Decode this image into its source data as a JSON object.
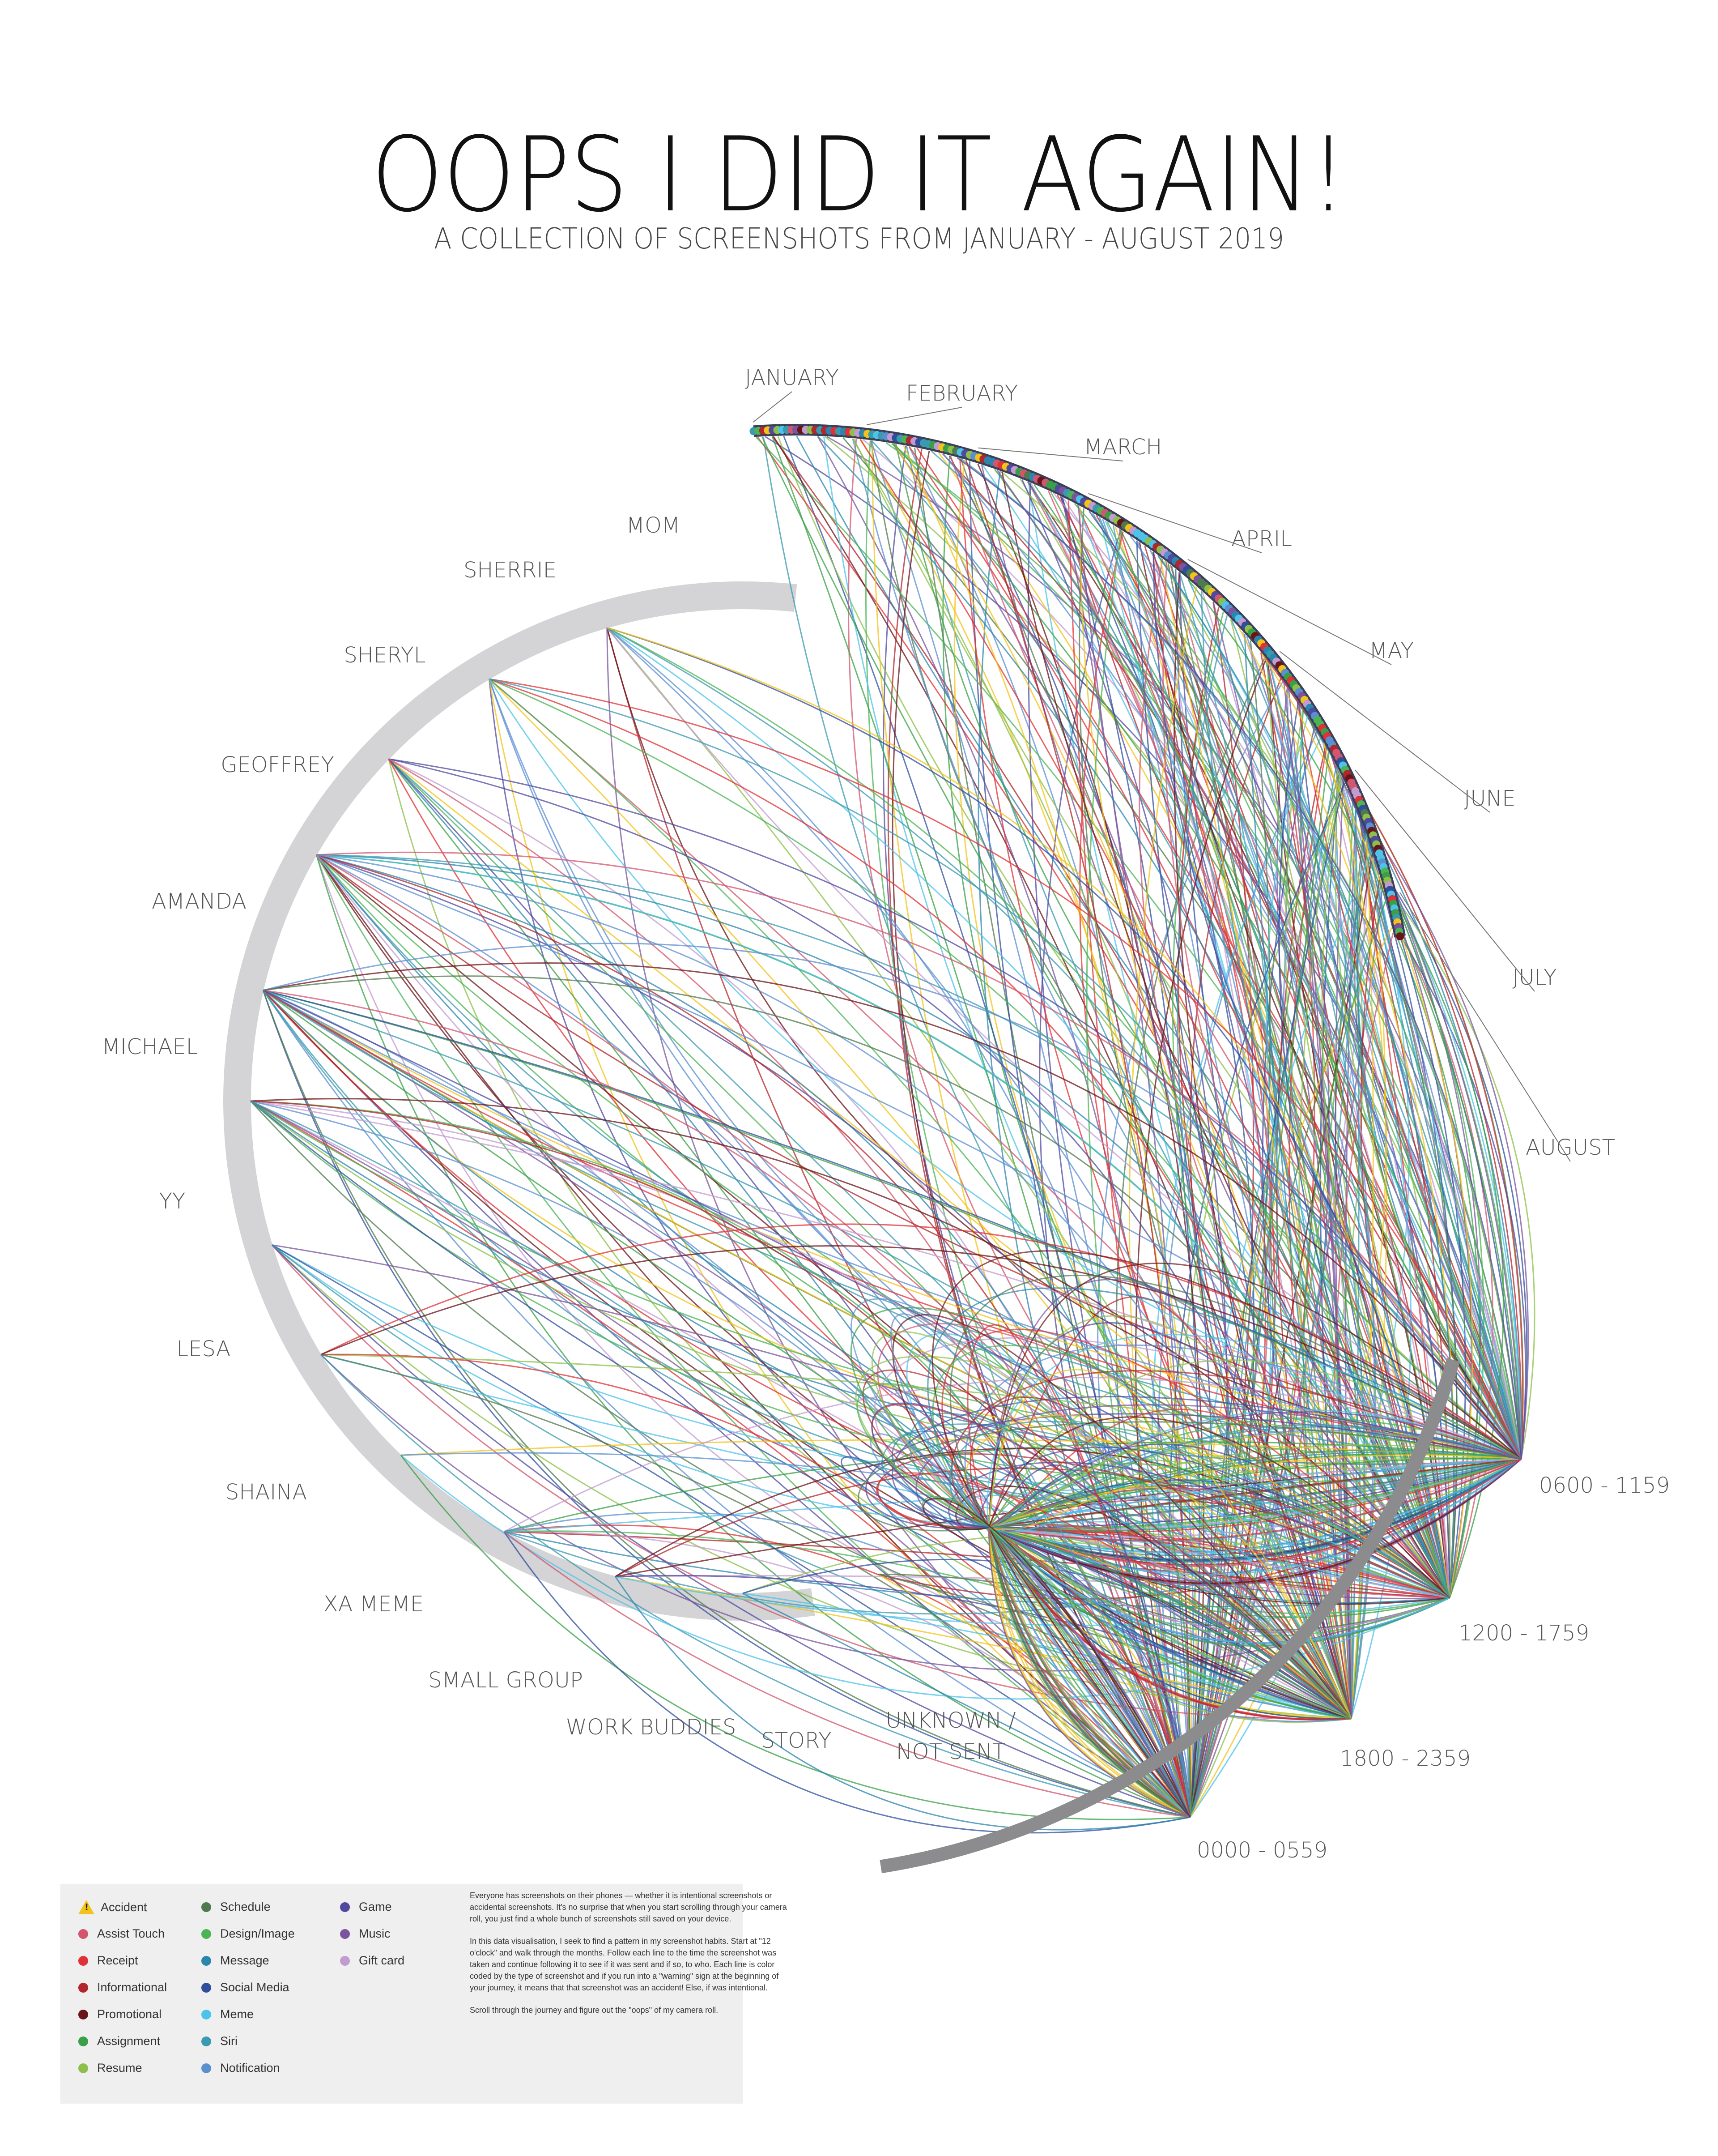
{
  "title": "OOPS I DID IT AGAIN!",
  "subtitle": "A COLLECTION OF SCREENSHOTS FROM JANUARY - AUGUST 2019",
  "months": [
    "JANUARY",
    "FEBRUARY",
    "MARCH",
    "APRIL",
    "MAY",
    "JUNE",
    "JULY",
    "AUGUST"
  ],
  "recipients": [
    "MOM",
    "SHERRIE",
    "SHERYL",
    "GEOFFREY",
    "AMANDA",
    "MICHAEL",
    "YY",
    "LESA",
    "SHAINA",
    "XA MEME",
    "SMALL GROUP",
    "WORK BUDDIES",
    "STORY",
    "UNKNOWN /",
    "NOT SENT"
  ],
  "time_slots": [
    "0600 - 1159",
    "1200 - 1759",
    "1800 - 2359",
    "0000 - 0559"
  ],
  "legend": [
    {
      "label": "Accident",
      "color": "#f3c319",
      "icon": "warning-icon"
    },
    {
      "label": "Assist Touch",
      "color": "#d1566e"
    },
    {
      "label": "Receipt",
      "color": "#e03136"
    },
    {
      "label": "Informational",
      "color": "#b3262b"
    },
    {
      "label": "Promotional",
      "color": "#6b1418"
    },
    {
      "label": "Assignment",
      "color": "#3aa047"
    },
    {
      "label": "Resume",
      "color": "#8cc04a"
    },
    {
      "label": "Schedule",
      "color": "#4f7a4f"
    },
    {
      "label": "Design/Image",
      "color": "#4bb455"
    },
    {
      "label": "Message",
      "color": "#2b86ad"
    },
    {
      "label": "Social Media",
      "color": "#2f4f9e"
    },
    {
      "label": "Meme",
      "color": "#4dc3ea"
    },
    {
      "label": "Siri",
      "color": "#3a9ab0"
    },
    {
      "label": "Notification",
      "color": "#5b8fd0"
    },
    {
      "label": "Game",
      "color": "#4f4aa0"
    },
    {
      "label": "Music",
      "color": "#7a549c"
    },
    {
      "label": "Gift card",
      "color": "#c49bd0"
    }
  ],
  "description": [
    "Everyone has screenshots on their phones — whether it is intentional screenshots or accidental screenshots. It's no surprise that when you start scrolling through your camera roll, you just find a whole bunch of screenshots still saved on your device.",
    "In this data visualisation, I seek to find a pattern in my screenshot habits. Start at \"12 o'clock\" and walk through the months. Follow each line to the time the screenshot was taken and continue following it to see if it was sent and if so, to who. Each line is color coded by the type of screenshot and if you run into a \"warning\" sign at the beginning of your journey, it means that that screenshot was an accident! Else, if was intentional.",
    "Scroll through the journey and figure out the \"oops\" of my camera roll."
  ]
}
